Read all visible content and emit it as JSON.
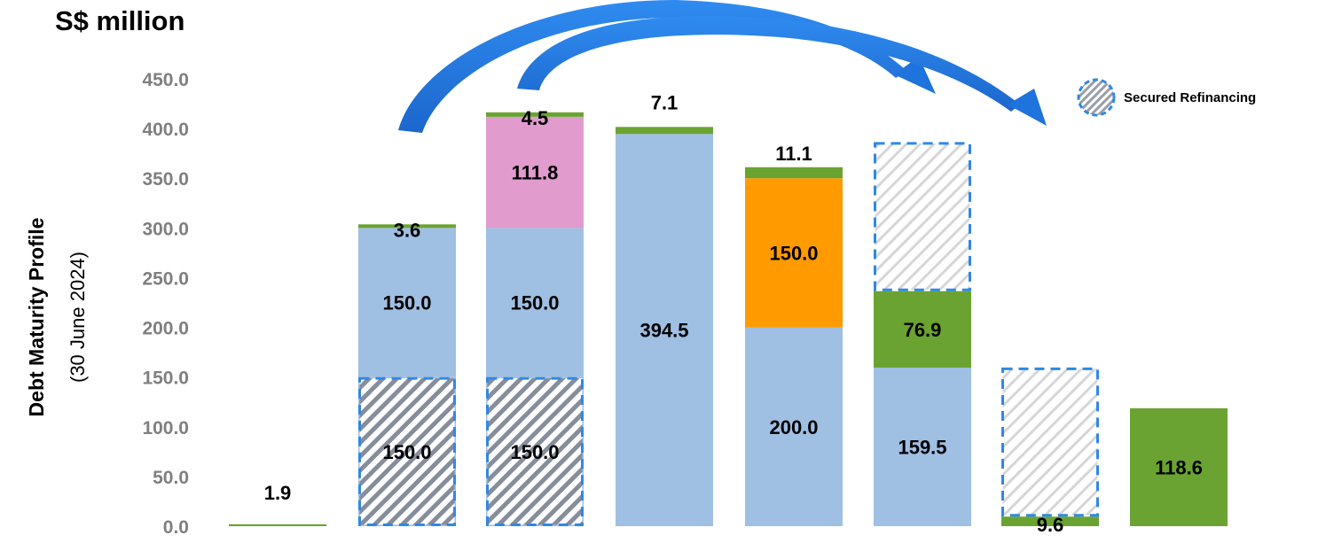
{
  "unit_title": "S$ million",
  "y_axis_title": "Debt Maturity Profile",
  "y_axis_subtitle": "(30 June 2024)",
  "legend": {
    "label": "Secured Refinancing",
    "icon": "hatched-circle-icon"
  },
  "colors": {
    "blue": "#9fbfe3",
    "green": "#6aa331",
    "pink": "#e19bcd",
    "orange": "#ff9b00",
    "hatch_dark": "#868d9b",
    "hatch_light": "#d6d6d6",
    "dash_border": "#2f88e6",
    "arrow": "#1e73dc",
    "tick": "#7f7f7f"
  },
  "chart_data": {
    "type": "bar",
    "stacked": true,
    "ylim": [
      0,
      450
    ],
    "yticks": [
      "0.0",
      "50.0",
      "100.0",
      "150.0",
      "200.0",
      "250.0",
      "300.0",
      "350.0",
      "400.0",
      "450.0"
    ],
    "grid": false,
    "legend_position": "top-right",
    "bars": [
      {
        "segments": [
          {
            "value": 1.9,
            "color": "green",
            "label": "1.9"
          }
        ]
      },
      {
        "segments": [
          {
            "value": 150.0,
            "color": "blue",
            "label": "150.0",
            "secured": "dark"
          },
          {
            "value": 150.0,
            "color": "blue",
            "label": "150.0"
          },
          {
            "value": 3.6,
            "color": "green",
            "label": "3.6"
          }
        ]
      },
      {
        "segments": [
          {
            "value": 150.0,
            "color": "blue",
            "label": "150.0",
            "secured": "dark"
          },
          {
            "value": 150.0,
            "color": "blue",
            "label": "150.0"
          },
          {
            "value": 111.8,
            "color": "pink",
            "label": "111.8"
          },
          {
            "value": 4.5,
            "color": "green",
            "label": "4.5"
          }
        ]
      },
      {
        "segments": [
          {
            "value": 394.5,
            "color": "blue",
            "label": "394.5"
          },
          {
            "value": 7.1,
            "color": "green",
            "label": "7.1"
          }
        ]
      },
      {
        "segments": [
          {
            "value": 200.0,
            "color": "blue",
            "label": "200.0"
          },
          {
            "value": 150.0,
            "color": "orange",
            "label": "150.0"
          },
          {
            "value": 11.1,
            "color": "green",
            "label": "11.1"
          }
        ]
      },
      {
        "segments": [
          {
            "value": 159.5,
            "color": "blue",
            "label": "159.5"
          },
          {
            "value": 76.9,
            "color": "green",
            "label": "76.9"
          },
          {
            "value": 150.0,
            "color": "none",
            "secured": "light"
          }
        ]
      },
      {
        "segments": [
          {
            "value": 9.6,
            "color": "green",
            "label": "9.6"
          },
          {
            "value": 150.0,
            "color": "none",
            "secured": "light"
          }
        ]
      },
      {
        "segments": [
          {
            "value": 118.6,
            "color": "green",
            "label": "118.6"
          }
        ]
      }
    ]
  }
}
